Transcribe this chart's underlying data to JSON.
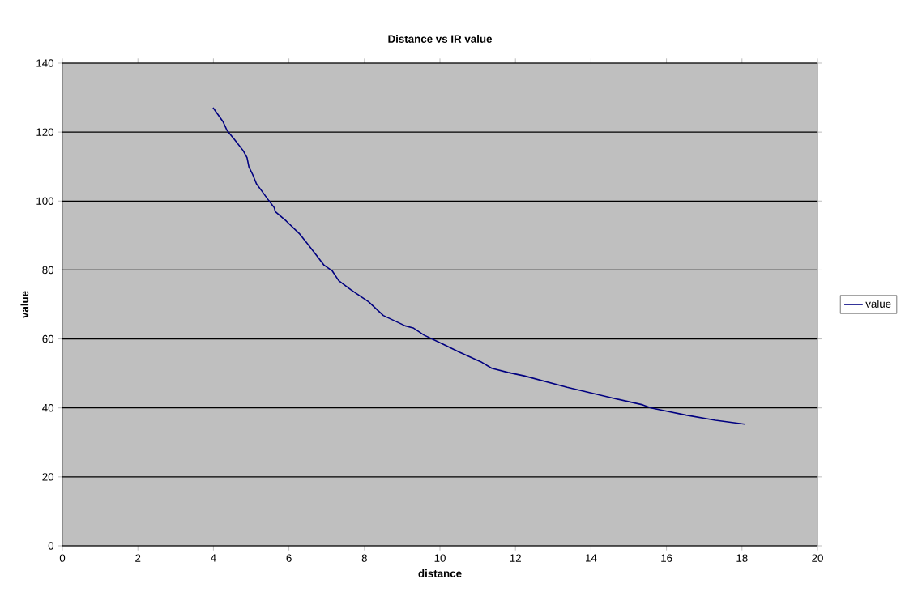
{
  "chart_data": {
    "type": "line",
    "title": "Distance vs IR value",
    "xlabel": "distance",
    "ylabel": "value",
    "xlim": [
      0,
      20
    ],
    "xticks": [
      0,
      2,
      4,
      6,
      8,
      10,
      12,
      14,
      16,
      18,
      20
    ],
    "ylim": [
      0,
      140
    ],
    "yticks": [
      0,
      20,
      40,
      60,
      80,
      100,
      120,
      140
    ],
    "grid": "y",
    "legend": "right",
    "marker": "none",
    "line_style": "solid",
    "series": [
      {
        "name": "value",
        "color": "#000080",
        "x": [
          3.99,
          4.25,
          4.36,
          4.57,
          4.79,
          4.89,
          4.94,
          5.04,
          5.14,
          5.29,
          5.47,
          5.61,
          5.64,
          5.93,
          6.29,
          6.5,
          6.75,
          6.93,
          7.15,
          7.32,
          7.65,
          8.11,
          8.5,
          9.08,
          9.29,
          9.58,
          10.08,
          10.51,
          11.08,
          11.37,
          11.8,
          12.23,
          13.37,
          14.59,
          15.37,
          15.59,
          16.52,
          17.3,
          18.07
        ],
        "values": [
          127.1,
          123.1,
          120.5,
          117.7,
          114.6,
          112.6,
          109.9,
          107.7,
          105.0,
          102.8,
          100.1,
          98.1,
          96.9,
          94.2,
          90.4,
          87.5,
          84.0,
          81.4,
          79.7,
          76.9,
          74.2,
          70.8,
          66.8,
          63.8,
          63.2,
          61.1,
          58.5,
          56.2,
          53.4,
          51.5,
          50.3,
          49.3,
          46.0,
          42.8,
          40.9,
          40.0,
          37.9,
          36.4,
          35.3
        ]
      }
    ]
  }
}
